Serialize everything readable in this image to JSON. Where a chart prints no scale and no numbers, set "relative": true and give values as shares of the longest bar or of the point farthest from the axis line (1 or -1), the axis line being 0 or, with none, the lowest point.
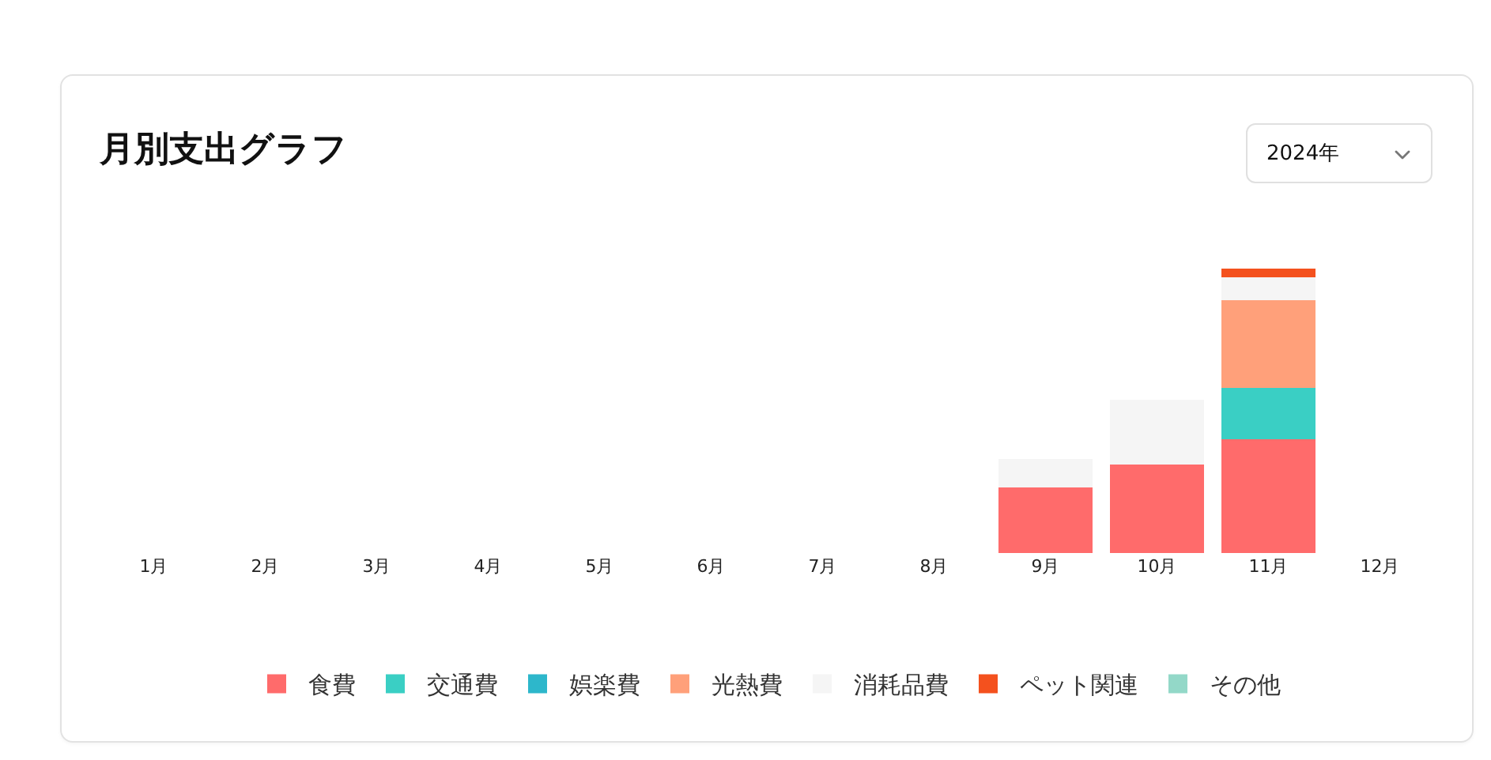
{
  "chart_data": {
    "type": "bar",
    "title": "月別支出グラフ",
    "annotations": [
      "2024年"
    ],
    "categories": [
      "1月",
      "2月",
      "3月",
      "4月",
      "5月",
      "6月",
      "7月",
      "8月",
      "9月",
      "10月",
      "11月",
      "12月"
    ],
    "stacked": true,
    "relative": true,
    "legend": "bottom",
    "series": [
      {
        "name": "食費",
        "color": "#ff6b6b",
        "values": [
          null,
          null,
          null,
          null,
          null,
          null,
          null,
          null,
          0.23,
          0.31,
          0.4,
          null
        ]
      },
      {
        "name": "交通費",
        "color": "#3acfc4",
        "values": [
          null,
          null,
          null,
          null,
          null,
          null,
          null,
          null,
          null,
          null,
          0.18,
          null
        ]
      },
      {
        "name": "娯楽費",
        "color": "#2db7cb",
        "values": [
          null,
          null,
          null,
          null,
          null,
          null,
          null,
          null,
          null,
          null,
          null,
          null
        ]
      },
      {
        "name": "光熱費",
        "color": "#ffa07a",
        "values": [
          null,
          null,
          null,
          null,
          null,
          null,
          null,
          null,
          null,
          null,
          0.31,
          null
        ]
      },
      {
        "name": "消耗品費",
        "color": "#f5f5f5",
        "values": [
          null,
          null,
          null,
          null,
          null,
          null,
          null,
          null,
          0.1,
          0.23,
          0.08,
          null
        ]
      },
      {
        "name": "ペット関連",
        "color": "#f4511e",
        "values": [
          null,
          null,
          null,
          null,
          null,
          null,
          null,
          null,
          null,
          null,
          0.03,
          null
        ]
      },
      {
        "name": "その他",
        "color": "#93d8c8",
        "values": [
          null,
          null,
          null,
          null,
          null,
          null,
          null,
          null,
          null,
          null,
          null,
          null
        ]
      }
    ]
  }
}
